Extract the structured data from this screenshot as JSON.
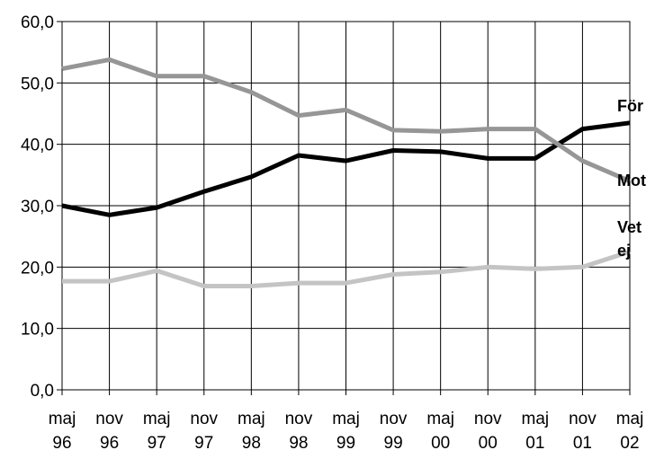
{
  "chart_data": {
    "type": "line",
    "categories": [
      [
        "maj",
        "96"
      ],
      [
        "nov",
        "96"
      ],
      [
        "maj",
        "97"
      ],
      [
        "nov",
        "97"
      ],
      [
        "maj",
        "98"
      ],
      [
        "nov",
        "98"
      ],
      [
        "maj",
        "99"
      ],
      [
        "nov",
        "99"
      ],
      [
        "maj",
        "00"
      ],
      [
        "nov",
        "00"
      ],
      [
        "maj",
        "01"
      ],
      [
        "nov",
        "01"
      ],
      [
        "maj",
        "02"
      ]
    ],
    "y_ticks": [
      "0,0",
      "10,0",
      "20,0",
      "30,0",
      "40,0",
      "50,0",
      "60,0"
    ],
    "ylim": [
      0,
      60
    ],
    "grid": true,
    "legend": "right, labels at line ends",
    "series": [
      {
        "name": "För",
        "name_lines": [
          "För"
        ],
        "color": "#000000",
        "values": [
          30.0,
          28.5,
          29.7,
          32.3,
          34.7,
          38.2,
          37.3,
          39.0,
          38.8,
          37.7,
          37.7,
          42.5,
          43.5
        ]
      },
      {
        "name": "Mot",
        "name_lines": [
          "Mot"
        ],
        "color": "#969696",
        "values": [
          52.3,
          53.8,
          51.1,
          51.1,
          48.5,
          44.7,
          45.6,
          42.3,
          42.1,
          42.5,
          42.5,
          37.3,
          34.0
        ]
      },
      {
        "name": "Vet ej",
        "name_lines": [
          "Vet",
          "ej"
        ],
        "color": "#c4c4c4",
        "values": [
          17.7,
          17.7,
          19.4,
          16.9,
          16.9,
          17.4,
          17.4,
          18.8,
          19.2,
          20.0,
          19.7,
          20.0,
          22.5
        ]
      }
    ]
  }
}
